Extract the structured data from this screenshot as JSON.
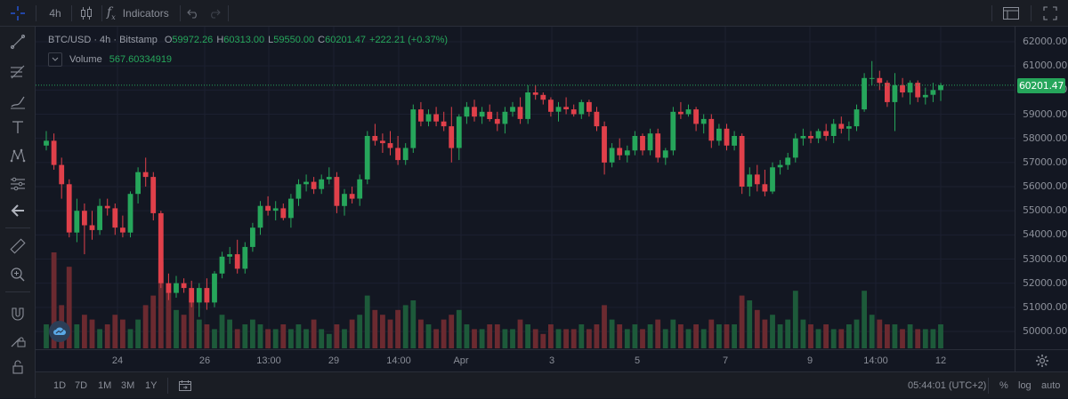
{
  "topbar": {
    "interval": "4h",
    "indicators_label": "Indicators",
    "chart_type_icon": "candles-icon",
    "undo_icon": "undo-icon",
    "redo_icon": "redo-icon",
    "layout_icon": "layout-icon",
    "fullscreen_icon": "fullscreen-icon"
  },
  "legend": {
    "symbol": "BTC/USD · 4h · Bitstamp",
    "open_label": "O",
    "open": "59972.26",
    "high_label": "H",
    "high": "60313.00",
    "low_label": "L",
    "low": "59550.00",
    "close_label": "C",
    "close": "60201.47",
    "change": "+222.21 (+0.37%)",
    "volume_label": "Volume",
    "volume_value": "567.60334919"
  },
  "colors": {
    "up": "#26a65b",
    "down": "#e0404a",
    "up_volume": "#1d5a3a",
    "down_volume": "#6b2a30",
    "accent": "#2962ff",
    "background": "#131722"
  },
  "left_toolbar": [
    "crosshair-icon",
    "trend-line-icon",
    "fib-retracement-icon",
    "brush-icon",
    "text-icon",
    "pattern-icon",
    "prediction-icon",
    "back-arrow-icon",
    "ruler-icon",
    "zoom-in-icon",
    "magnet-icon",
    "lock-drawings-icon",
    "lock-icon"
  ],
  "price_axis": {
    "labels": [
      "62000.00",
      "61000.00",
      "60000.00",
      "59000.00",
      "58000.00",
      "57000.00",
      "56000.00",
      "55000.00",
      "54000.00",
      "53000.00",
      "52000.00",
      "51000.00",
      "50000.00"
    ],
    "last_price": "60201.47"
  },
  "time_axis": {
    "labels": [
      "24",
      "26",
      "13:00",
      "29",
      "14:00",
      "Apr",
      "3",
      "5",
      "7",
      "9",
      "14:00",
      "12"
    ]
  },
  "bottombar": {
    "ranges": [
      "1D",
      "7D",
      "1M",
      "3M",
      "1Y"
    ],
    "time": "05:44:01 (UTC+2)",
    "percent": "%",
    "log": "log",
    "auto": "auto"
  },
  "chart_data": {
    "type": "candlestick",
    "symbol": "BTC/USD",
    "interval": "4h",
    "ylim": [
      49500,
      62500
    ],
    "ohlc": [
      [
        57700,
        58300,
        57500,
        57900
      ],
      [
        57900,
        58200,
        56700,
        56900
      ],
      [
        56900,
        57200,
        55500,
        56100
      ],
      [
        56100,
        56300,
        53900,
        54100
      ],
      [
        54100,
        55500,
        53700,
        55000
      ],
      [
        55000,
        55300,
        53200,
        54400
      ],
      [
        54400,
        55000,
        53800,
        54200
      ],
      [
        54200,
        55500,
        54000,
        55200
      ],
      [
        55200,
        55500,
        54800,
        55100
      ],
      [
        55100,
        55300,
        54000,
        54300
      ],
      [
        54300,
        54800,
        53900,
        54100
      ],
      [
        54100,
        55800,
        53900,
        55700
      ],
      [
        55700,
        56800,
        55300,
        56600
      ],
      [
        56600,
        57200,
        56000,
        56400
      ],
      [
        56400,
        56600,
        54600,
        54900
      ],
      [
        54900,
        55000,
        51800,
        52000
      ],
      [
        52000,
        52400,
        51300,
        51600
      ],
      [
        51600,
        52300,
        51400,
        52000
      ],
      [
        52000,
        52200,
        51600,
        51800
      ],
      [
        51800,
        52100,
        51000,
        51200
      ],
      [
        51200,
        52000,
        50600,
        51800
      ],
      [
        51800,
        52200,
        50900,
        51200
      ],
      [
        51200,
        52500,
        51000,
        52400
      ],
      [
        52400,
        53300,
        52200,
        53100
      ],
      [
        53100,
        53500,
        52800,
        53200
      ],
      [
        53200,
        53800,
        52400,
        52600
      ],
      [
        52600,
        53700,
        52400,
        53500
      ],
      [
        53500,
        54500,
        53300,
        54300
      ],
      [
        54300,
        55400,
        54000,
        55200
      ],
      [
        55200,
        55600,
        54800,
        55000
      ],
      [
        55000,
        55400,
        54600,
        55100
      ],
      [
        55100,
        55300,
        54600,
        54700
      ],
      [
        54700,
        55700,
        54300,
        55500
      ],
      [
        55500,
        56300,
        55200,
        56100
      ],
      [
        56100,
        56500,
        55800,
        56200
      ],
      [
        56200,
        56400,
        55700,
        55900
      ],
      [
        55900,
        56500,
        55700,
        56300
      ],
      [
        56300,
        56800,
        56100,
        56400
      ],
      [
        56400,
        56600,
        54900,
        55200
      ],
      [
        55200,
        55900,
        54800,
        55700
      ],
      [
        55700,
        56000,
        55300,
        55500
      ],
      [
        55500,
        56500,
        55200,
        56300
      ],
      [
        56300,
        58300,
        56100,
        58100
      ],
      [
        58100,
        58600,
        57700,
        57900
      ],
      [
        57900,
        58200,
        57400,
        57800
      ],
      [
        57800,
        58300,
        57300,
        57600
      ],
      [
        57600,
        58100,
        56900,
        57100
      ],
      [
        57100,
        57800,
        56900,
        57600
      ],
      [
        57600,
        59400,
        57400,
        59200
      ],
      [
        59200,
        59500,
        58500,
        58700
      ],
      [
        58700,
        59200,
        58500,
        59000
      ],
      [
        59000,
        59300,
        58500,
        58700
      ],
      [
        58700,
        59100,
        58300,
        58500
      ],
      [
        58500,
        59300,
        57000,
        57600
      ],
      [
        57600,
        59000,
        57100,
        58900
      ],
      [
        58900,
        59500,
        58600,
        59300
      ],
      [
        59300,
        59600,
        58700,
        58900
      ],
      [
        58900,
        59300,
        58600,
        59100
      ],
      [
        59100,
        59400,
        58700,
        58800
      ],
      [
        58800,
        59100,
        58300,
        58600
      ],
      [
        58600,
        59300,
        58200,
        59100
      ],
      [
        59100,
        59500,
        58900,
        59300
      ],
      [
        59300,
        59700,
        58600,
        58800
      ],
      [
        58800,
        60200,
        58600,
        59900
      ],
      [
        59900,
        60200,
        59600,
        59800
      ],
      [
        59800,
        59900,
        59400,
        59600
      ],
      [
        59600,
        59700,
        58900,
        59100
      ],
      [
        59100,
        59500,
        58700,
        59300
      ],
      [
        59300,
        59700,
        59000,
        59200
      ],
      [
        59200,
        59400,
        58900,
        59000
      ],
      [
        59000,
        59600,
        58800,
        59500
      ],
      [
        59500,
        59600,
        58900,
        59100
      ],
      [
        59100,
        59300,
        58300,
        58500
      ],
      [
        58500,
        58700,
        56500,
        57000
      ],
      [
        57000,
        57800,
        56800,
        57600
      ],
      [
        57600,
        58000,
        57100,
        57300
      ],
      [
        57300,
        57700,
        57000,
        57500
      ],
      [
        57500,
        58300,
        57300,
        58100
      ],
      [
        58100,
        58200,
        57300,
        57500
      ],
      [
        57500,
        58400,
        57300,
        58200
      ],
      [
        58200,
        58400,
        57000,
        57200
      ],
      [
        57200,
        57600,
        56900,
        57500
      ],
      [
        57500,
        59300,
        57300,
        59100
      ],
      [
        59100,
        59500,
        58800,
        59000
      ],
      [
        59000,
        59400,
        58900,
        59200
      ],
      [
        59200,
        59300,
        58300,
        58600
      ],
      [
        58600,
        59000,
        58200,
        58800
      ],
      [
        58800,
        59000,
        57600,
        57900
      ],
      [
        57900,
        58600,
        57700,
        58400
      ],
      [
        58400,
        58600,
        57500,
        57700
      ],
      [
        57700,
        58300,
        57500,
        58100
      ],
      [
        58100,
        58200,
        55700,
        56000
      ],
      [
        56000,
        56800,
        55600,
        56500
      ],
      [
        56500,
        56900,
        55800,
        56100
      ],
      [
        56100,
        56700,
        55600,
        55800
      ],
      [
        55800,
        57000,
        55700,
        56800
      ],
      [
        56800,
        57100,
        56500,
        56900
      ],
      [
        56900,
        57400,
        56700,
        57200
      ],
      [
        57200,
        58200,
        57000,
        58000
      ],
      [
        58000,
        58400,
        57700,
        58100
      ],
      [
        58100,
        58300,
        57800,
        58000
      ],
      [
        58000,
        58400,
        57800,
        58300
      ],
      [
        58300,
        58600,
        57900,
        58100
      ],
      [
        58100,
        58800,
        57800,
        58600
      ],
      [
        58600,
        58900,
        58200,
        58400
      ],
      [
        58400,
        58700,
        57900,
        58500
      ],
      [
        58500,
        59400,
        58300,
        59200
      ],
      [
        59200,
        60700,
        59100,
        60500
      ],
      [
        60500,
        61200,
        60200,
        60500
      ],
      [
        60500,
        60800,
        60000,
        60300
      ],
      [
        60300,
        60400,
        59300,
        59500
      ],
      [
        59500,
        60700,
        58300,
        60200
      ],
      [
        60200,
        60500,
        59700,
        59900
      ],
      [
        59900,
        60400,
        59400,
        60300
      ],
      [
        60300,
        60400,
        59500,
        59700
      ],
      [
        59700,
        60100,
        59400,
        59800
      ],
      [
        59800,
        60300,
        59500,
        60000
      ],
      [
        60000,
        60300,
        59550,
        60201
      ]
    ],
    "volume_relative": [
      0.25,
      1.0,
      0.45,
      0.85,
      0.25,
      0.35,
      0.3,
      0.2,
      0.25,
      0.35,
      0.3,
      0.2,
      0.3,
      0.45,
      0.55,
      0.9,
      0.6,
      0.4,
      0.35,
      0.5,
      0.3,
      0.25,
      0.2,
      0.35,
      0.3,
      0.2,
      0.25,
      0.3,
      0.25,
      0.2,
      0.2,
      0.25,
      0.2,
      0.25,
      0.2,
      0.3,
      0.2,
      0.15,
      0.25,
      0.2,
      0.3,
      0.35,
      0.55,
      0.4,
      0.35,
      0.3,
      0.4,
      0.45,
      0.5,
      0.3,
      0.25,
      0.2,
      0.3,
      0.35,
      0.4,
      0.25,
      0.2,
      0.2,
      0.25,
      0.25,
      0.2,
      0.2,
      0.3,
      0.25,
      0.2,
      0.15,
      0.25,
      0.2,
      0.2,
      0.2,
      0.25,
      0.2,
      0.25,
      0.45,
      0.3,
      0.25,
      0.2,
      0.25,
      0.2,
      0.25,
      0.3,
      0.2,
      0.3,
      0.25,
      0.2,
      0.25,
      0.2,
      0.3,
      0.25,
      0.25,
      0.25,
      0.55,
      0.5,
      0.4,
      0.3,
      0.35,
      0.25,
      0.3,
      0.6,
      0.3,
      0.25,
      0.2,
      0.25,
      0.2,
      0.2,
      0.25,
      0.3,
      0.6,
      0.35,
      0.3,
      0.25,
      0.25,
      0.2,
      0.25,
      0.2,
      0.2,
      0.2,
      0.25
    ],
    "volume_ylim_relative": [
      0,
      1
    ]
  }
}
